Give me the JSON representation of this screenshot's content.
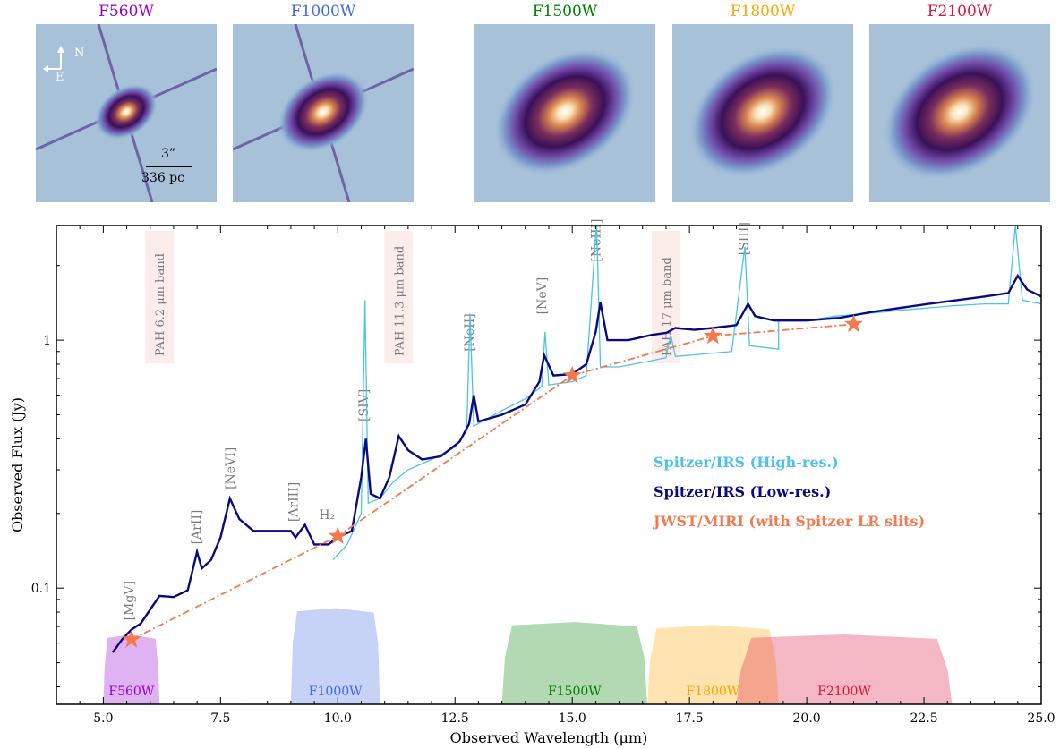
{
  "panels": [
    {
      "filter": "F560W",
      "color": "#9400d3"
    },
    {
      "filter": "F1000W",
      "color": "#4169e1"
    },
    {
      "filter": "F1500W",
      "color": "#008000"
    },
    {
      "filter": "F1800W",
      "color": "#ffa500"
    },
    {
      "filter": "F2100W",
      "color": "#dc143c"
    }
  ],
  "compass": {
    "north": "N",
    "east": "E"
  },
  "scalebar": {
    "angular": "3”",
    "physical": "336  pc"
  },
  "chart_data": {
    "type": "line",
    "xlabel": "Observed Wavelength (μm)",
    "ylabel": "Observed Flux (Jy)",
    "xlim": [
      4.0,
      25.0
    ],
    "ylim": [
      0.034,
      2.9
    ],
    "yscale": "log",
    "xticks": [
      5.0,
      7.5,
      10.0,
      12.5,
      15.0,
      17.5,
      20.0,
      22.5,
      25.0
    ],
    "xtick_labels": [
      "5.0",
      "7.5",
      "10.0",
      "12.5",
      "15.0",
      "17.5",
      "20.0",
      "22.5",
      "25.0"
    ],
    "yticks": [
      0.1,
      1
    ],
    "ytick_labels": [
      "0.1",
      "1"
    ],
    "legend": [
      {
        "label": "Spitzer/IRS (High-res.)",
        "color": "#4cc3ea"
      },
      {
        "label": "Spitzer/IRS (Low-res.)",
        "color": "#0a0a80"
      },
      {
        "label": "JWST/MIRI (with Spitzer LR slits)",
        "color": "#f4794f"
      }
    ],
    "legend_position": "right",
    "series": [
      {
        "name": "Spitzer/IRS (Low-res.)",
        "color": "#0a0a80",
        "points": [
          [
            5.2,
            0.055
          ],
          [
            5.4,
            0.062
          ],
          [
            5.6,
            0.068
          ],
          [
            5.8,
            0.072
          ],
          [
            6.0,
            0.082
          ],
          [
            6.2,
            0.093
          ],
          [
            6.5,
            0.092
          ],
          [
            6.8,
            0.098
          ],
          [
            7.0,
            0.14
          ],
          [
            7.1,
            0.12
          ],
          [
            7.3,
            0.13
          ],
          [
            7.5,
            0.16
          ],
          [
            7.7,
            0.23
          ],
          [
            7.9,
            0.19
          ],
          [
            8.2,
            0.17
          ],
          [
            8.6,
            0.17
          ],
          [
            9.0,
            0.17
          ],
          [
            9.1,
            0.16
          ],
          [
            9.3,
            0.18
          ],
          [
            9.5,
            0.15
          ],
          [
            9.8,
            0.15
          ],
          [
            10.0,
            0.16
          ],
          [
            10.3,
            0.17
          ],
          [
            10.5,
            0.28
          ],
          [
            10.6,
            0.4
          ],
          [
            10.7,
            0.24
          ],
          [
            10.9,
            0.23
          ],
          [
            11.1,
            0.28
          ],
          [
            11.3,
            0.41
          ],
          [
            11.5,
            0.36
          ],
          [
            11.8,
            0.33
          ],
          [
            12.2,
            0.34
          ],
          [
            12.6,
            0.39
          ],
          [
            12.8,
            0.46
          ],
          [
            12.9,
            0.6
          ],
          [
            13.0,
            0.47
          ],
          [
            13.5,
            0.5
          ],
          [
            14.0,
            0.55
          ],
          [
            14.3,
            0.68
          ],
          [
            14.4,
            0.87
          ],
          [
            14.6,
            0.72
          ],
          [
            15.0,
            0.73
          ],
          [
            15.3,
            0.8
          ],
          [
            15.5,
            1.08
          ],
          [
            15.6,
            1.42
          ],
          [
            15.75,
            1.0
          ],
          [
            16.2,
            1.0
          ],
          [
            16.7,
            1.05
          ],
          [
            17.0,
            1.07
          ],
          [
            17.2,
            1.12
          ],
          [
            17.6,
            1.1
          ],
          [
            18.0,
            1.12
          ],
          [
            18.5,
            1.15
          ],
          [
            18.75,
            1.4
          ],
          [
            18.9,
            1.25
          ],
          [
            19.3,
            1.2
          ],
          [
            20.0,
            1.2
          ],
          [
            20.7,
            1.23
          ],
          [
            21.4,
            1.3
          ],
          [
            22.0,
            1.35
          ],
          [
            22.6,
            1.4
          ],
          [
            23.2,
            1.45
          ],
          [
            23.8,
            1.5
          ],
          [
            24.3,
            1.55
          ],
          [
            24.5,
            1.82
          ],
          [
            24.7,
            1.6
          ],
          [
            25.0,
            1.5
          ]
        ]
      },
      {
        "name": "Spitzer/IRS (High-res.)",
        "color": "#4cc3ea",
        "points": [
          [
            9.9,
            0.13
          ],
          [
            10.2,
            0.15
          ],
          [
            10.5,
            0.2
          ],
          [
            10.58,
            1.45
          ],
          [
            10.65,
            0.22
          ],
          [
            10.9,
            0.23
          ],
          [
            11.2,
            0.27
          ],
          [
            11.5,
            0.3
          ],
          [
            12.0,
            0.33
          ],
          [
            12.5,
            0.37
          ],
          [
            12.75,
            0.43
          ],
          [
            12.82,
            1.28
          ],
          [
            12.9,
            0.45
          ],
          [
            13.5,
            0.52
          ],
          [
            14.0,
            0.58
          ],
          [
            14.35,
            0.65
          ],
          [
            14.42,
            1.08
          ],
          [
            14.5,
            0.66
          ],
          [
            15.0,
            0.68
          ],
          [
            15.3,
            0.72
          ],
          [
            15.52,
            3.0
          ],
          [
            15.6,
            0.78
          ],
          [
            16.0,
            0.78
          ],
          [
            16.6,
            0.82
          ],
          [
            17.0,
            0.85
          ],
          [
            17.1,
            1.05
          ],
          [
            17.2,
            0.86
          ],
          [
            17.8,
            0.88
          ],
          [
            18.4,
            0.9
          ],
          [
            18.68,
            2.38
          ],
          [
            18.78,
            0.95
          ],
          [
            19.4,
            0.92
          ],
          [
            19.4,
            1.2
          ],
          [
            20.0,
            1.2
          ],
          [
            20.6,
            1.25
          ],
          [
            21.3,
            1.28
          ],
          [
            22.0,
            1.32
          ],
          [
            22.6,
            1.35
          ],
          [
            23.2,
            1.38
          ],
          [
            23.8,
            1.4
          ],
          [
            24.3,
            1.4
          ],
          [
            24.45,
            2.9
          ],
          [
            24.6,
            1.45
          ],
          [
            25.0,
            1.4
          ]
        ]
      },
      {
        "name": "JWST/MIRI (with Spitzer LR slits)",
        "color": "#f4794f",
        "points": [
          [
            5.6,
            0.062
          ],
          [
            10.0,
            0.162
          ],
          [
            15.0,
            0.72
          ],
          [
            18.0,
            1.04
          ],
          [
            21.0,
            1.16
          ]
        ]
      }
    ],
    "annotations": [
      "[MgV]",
      "[ArII]",
      "[NeVI]",
      "[ArIII]",
      "H₂",
      "[SIV]",
      "[NeII]",
      "[NeV]",
      "[NeIII]",
      "[SIII]",
      "PAH 6.2 μm band",
      "PAH 11.3 μm band",
      "PAH 17 μm band"
    ],
    "filter_bands": [
      {
        "name": "F560W",
        "range": [
          5.0,
          6.2
        ],
        "color": "#9400d3"
      },
      {
        "name": "F1000W",
        "range": [
          9.0,
          10.9
        ],
        "color": "#4169e1"
      },
      {
        "name": "F1500W",
        "range": [
          13.5,
          16.6
        ],
        "color": "#008000"
      },
      {
        "name": "F1800W",
        "range": [
          16.6,
          19.4
        ],
        "color": "#ffa500"
      },
      {
        "name": "F2100W",
        "range": [
          18.5,
          23.1
        ],
        "color": "#dc143c"
      }
    ]
  }
}
